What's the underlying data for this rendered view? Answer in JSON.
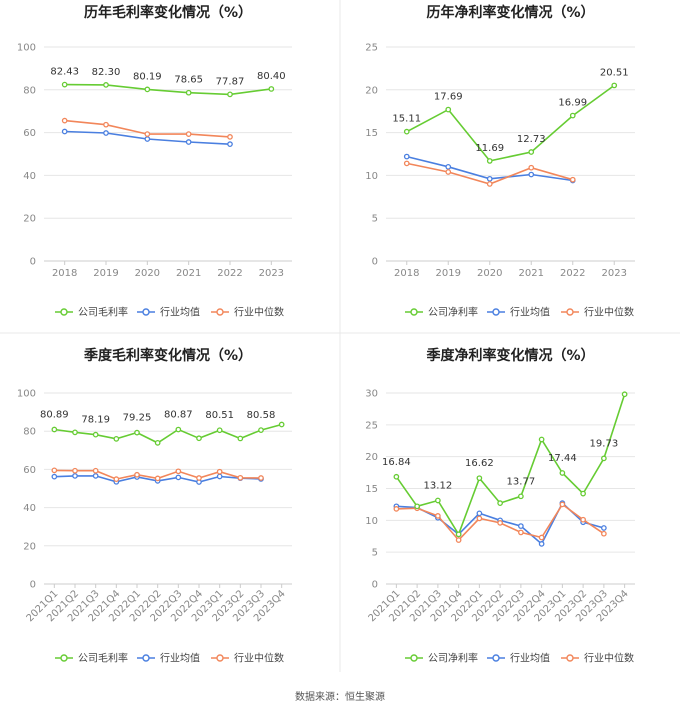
{
  "source_text": "数据来源：恒生聚源",
  "colors": {
    "company": "#66cc33",
    "industry_avg": "#4a7fe0",
    "industry_median": "#f2865a"
  },
  "chart_data": [
    {
      "type": "line",
      "title": "历年毛利率变化情况（%）",
      "categories": [
        "2018",
        "2019",
        "2020",
        "2021",
        "2022",
        "2023"
      ],
      "ylim": [
        0,
        100
      ],
      "yticks": [
        0,
        20,
        40,
        60,
        80,
        100
      ],
      "grid": true,
      "legend_position": "bottom",
      "series": [
        {
          "name": "公司毛利率",
          "key": "company",
          "values": [
            82.43,
            82.3,
            80.19,
            78.65,
            77.87,
            80.4
          ],
          "labels": [
            "82.43",
            "82.30",
            "80.19",
            "78.65",
            "77.87",
            "80.40"
          ]
        },
        {
          "name": "行业均值",
          "key": "industry_avg",
          "values": [
            60.5,
            59.8,
            57.0,
            55.6,
            54.6,
            null
          ]
        },
        {
          "name": "行业中位数",
          "key": "industry_median",
          "values": [
            65.6,
            63.7,
            59.3,
            59.3,
            58.0,
            null
          ]
        }
      ]
    },
    {
      "type": "line",
      "title": "历年净利率变化情况（%）",
      "categories": [
        "2018",
        "2019",
        "2020",
        "2021",
        "2022",
        "2023"
      ],
      "ylim": [
        0,
        25
      ],
      "yticks": [
        0,
        5,
        10,
        15,
        20,
        25
      ],
      "grid": true,
      "legend_position": "bottom",
      "series": [
        {
          "name": "公司净利率",
          "key": "company",
          "values": [
            15.11,
            17.69,
            11.69,
            12.73,
            16.99,
            20.51
          ],
          "labels": [
            "15.11",
            "17.69",
            "11.69",
            "12.73",
            "16.99",
            "20.51"
          ]
        },
        {
          "name": "行业均值",
          "key": "industry_avg",
          "values": [
            12.2,
            11.0,
            9.6,
            10.1,
            9.4,
            null
          ]
        },
        {
          "name": "行业中位数",
          "key": "industry_median",
          "values": [
            11.4,
            10.4,
            9.0,
            10.9,
            9.5,
            null
          ]
        }
      ]
    },
    {
      "type": "line",
      "title": "季度毛利率变化情况（%）",
      "categories": [
        "2021Q1",
        "2021Q2",
        "2021Q3",
        "2021Q4",
        "2022Q1",
        "2022Q2",
        "2022Q3",
        "2022Q4",
        "2023Q1",
        "2023Q2",
        "2023Q3",
        "2023Q4"
      ],
      "ylim": [
        0,
        100
      ],
      "yticks": [
        0,
        20,
        40,
        60,
        80,
        100
      ],
      "grid": true,
      "legend_position": "bottom",
      "series": [
        {
          "name": "公司毛利率",
          "key": "company",
          "values": [
            80.89,
            79.4,
            78.19,
            76.0,
            79.25,
            73.9,
            80.87,
            76.3,
            80.51,
            76.2,
            80.58,
            83.5
          ],
          "labels": [
            "80.89",
            "",
            "78.19",
            "",
            "79.25",
            "",
            "80.87",
            "",
            "80.51",
            "",
            "80.58",
            ""
          ]
        },
        {
          "name": "行业均值",
          "key": "industry_avg",
          "values": [
            56.2,
            56.6,
            56.6,
            53.5,
            56.0,
            54.0,
            55.8,
            53.4,
            56.3,
            55.4,
            55.0,
            null
          ]
        },
        {
          "name": "行业中位数",
          "key": "industry_median",
          "values": [
            59.5,
            59.3,
            59.3,
            54.9,
            57.2,
            55.3,
            59.0,
            55.5,
            58.8,
            55.6,
            55.5,
            null
          ]
        }
      ]
    },
    {
      "type": "line",
      "title": "季度净利率变化情况（%）",
      "categories": [
        "2021Q1",
        "2021Q2",
        "2021Q3",
        "2021Q4",
        "2022Q1",
        "2022Q2",
        "2022Q3",
        "2022Q4",
        "2023Q1",
        "2023Q2",
        "2023Q3",
        "2023Q4"
      ],
      "ylim": [
        0,
        30
      ],
      "yticks": [
        0,
        5,
        10,
        15,
        20,
        25,
        30
      ],
      "grid": true,
      "legend_position": "bottom",
      "series": [
        {
          "name": "公司净利率",
          "key": "company",
          "values": [
            16.84,
            12.2,
            13.12,
            7.8,
            16.62,
            12.7,
            13.77,
            22.7,
            17.44,
            14.2,
            19.73,
            29.8
          ],
          "labels": [
            "16.84",
            "",
            "13.12",
            "",
            "16.62",
            "",
            "13.77",
            "",
            "17.44",
            "",
            "19.73",
            ""
          ]
        },
        {
          "name": "行业均值",
          "key": "industry_avg",
          "values": [
            12.2,
            12.0,
            10.4,
            7.8,
            11.1,
            10.0,
            9.1,
            6.3,
            12.7,
            9.7,
            8.8,
            null
          ]
        },
        {
          "name": "行业中位数",
          "key": "industry_median",
          "values": [
            11.8,
            11.9,
            10.7,
            6.9,
            10.3,
            9.6,
            8.1,
            7.3,
            12.5,
            10.1,
            7.9,
            null
          ]
        }
      ]
    }
  ]
}
